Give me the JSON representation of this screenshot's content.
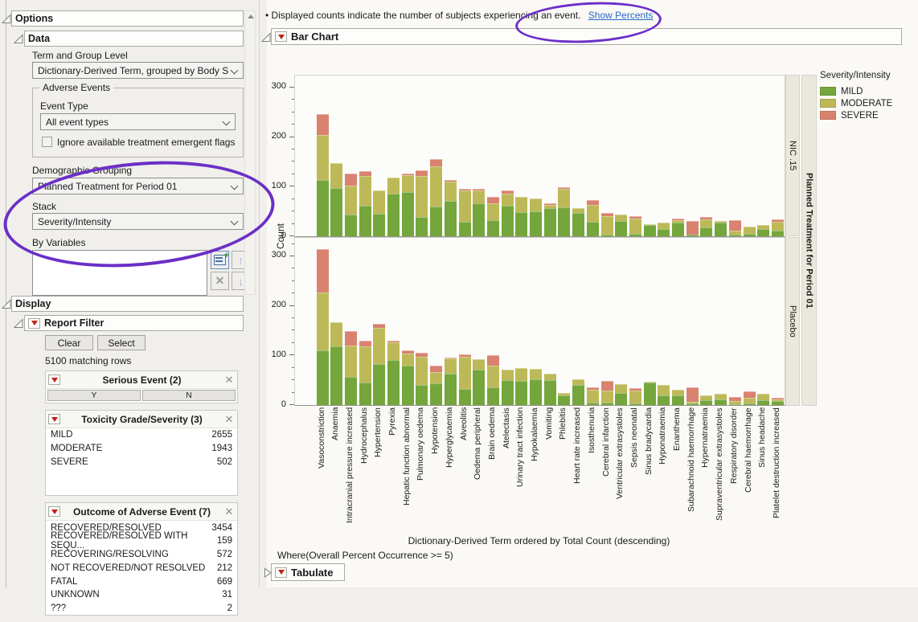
{
  "sidebar": {
    "options_label": "Options",
    "data_label": "Data",
    "term_group_label": "Term and Group Level",
    "term_group_value": "Dictionary-Derived Term, grouped by Body S",
    "adverse_events": {
      "legend": "Adverse Events",
      "event_type_label": "Event Type",
      "event_type_value": "All event types",
      "checkbox_label": "Ignore available treatment emergent flags"
    },
    "demographic_label": "Demographic Grouping",
    "demographic_value": "Planned Treatment for Period 01",
    "stack_label": "Stack",
    "stack_value": "Severity/Intensity",
    "by_variables_label": "By Variables",
    "display_label": "Display",
    "report_filter_label": "Report Filter",
    "clear_label": "Clear",
    "select_label": "Select",
    "matching_rows": "5100 matching rows",
    "filters": [
      {
        "title": "Serious Event (2)",
        "type": "buttons",
        "options": [
          "Y",
          "N"
        ]
      },
      {
        "title": "Toxicity Grade/Severity (3)",
        "type": "list",
        "pad_rows": 2,
        "rows": [
          [
            "MILD",
            "2655"
          ],
          [
            "MODERATE",
            "1943"
          ],
          [
            "SEVERE",
            "502"
          ]
        ]
      },
      {
        "title": "Outcome of Adverse Event (7)",
        "type": "list",
        "pad_rows": 0,
        "rows": [
          [
            "RECOVERED/RESOLVED",
            "3454"
          ],
          [
            "RECOVERED/RESOLVED WITH SEQU...",
            "159"
          ],
          [
            "RECOVERING/RESOLVING",
            "572"
          ],
          [
            "NOT RECOVERED/NOT RESOLVED",
            "212"
          ],
          [
            "FATAL",
            "669"
          ],
          [
            "UNKNOWN",
            "31"
          ],
          [
            "???",
            "2"
          ]
        ]
      }
    ]
  },
  "note": {
    "bullet": "•",
    "text": "Displayed counts indicate the number of subjects experiencing an event.",
    "link": "Show Percents"
  },
  "report": {
    "bar_chart_title": "Bar Chart",
    "ylabel": "Count",
    "xaxis_title": "Dictionary-Derived Term ordered by Total Count (descending)",
    "where_text": "Where(Overall Percent Occurrence >= 5)",
    "tabulate_label": "Tabulate",
    "group_strip_label": "Planned Treatment for Period 01"
  },
  "legend": {
    "title": "Severity/Intensity",
    "entries": [
      {
        "label": "MILD",
        "color": "#74A63C"
      },
      {
        "label": "MODERATE",
        "color": "#BDB958"
      },
      {
        "label": "SEVERE",
        "color": "#D98270"
      }
    ]
  },
  "chart_data": {
    "type": "bar",
    "stacked": true,
    "title": "Bar Chart",
    "xlabel": "Dictionary-Derived Term ordered by Total Count (descending)",
    "ylabel": "Count",
    "ylim": [
      0,
      330
    ],
    "yticks": [
      0,
      100,
      200,
      300
    ],
    "legend_title": "Severity/Intensity",
    "panel_variable": "Planned Treatment for Period 01",
    "categories": [
      "Vasoconstriction",
      "Anaemia",
      "Intracranial pressure increased",
      "Hydrocephalus",
      "Hypertension",
      "Pyrexia",
      "Hepatic function abnormal",
      "Pulmonary oedema",
      "Hypotension",
      "Hyperglycaemia",
      "Alveolitis",
      "Oedema peripheral",
      "Brain oedema",
      "Atelectasis",
      "Urinary tract infection",
      "Hypokalaemia",
      "Vomiting",
      "Phlebitis",
      "Heart rate increased",
      "Isosthenuria",
      "Cerebral infarction",
      "Ventricular extrasystoles",
      "Sepsis neonatal",
      "Sinus bradycardia",
      "Hyponatraemia",
      "Enanthema",
      "Subarachnoid haemorrhage",
      "Hypernatraemia",
      "Supraventricular extrasystoles",
      "Respiratory disorder",
      "Cerebral haemorrhage",
      "Sinus headache",
      "Platelet destruction increased"
    ],
    "panels": [
      {
        "name": "NIC .15",
        "series": [
          {
            "name": "MILD",
            "values": [
              113,
              97,
              44,
              61,
              46,
              86,
              90,
              39,
              60,
              71,
              29,
              67,
              32,
              61,
              48,
              50,
              57,
              59,
              47,
              30,
              4,
              31,
              5,
              22,
              14,
              28,
              3,
              18,
              28,
              4,
              5,
              15,
              11
            ]
          },
          {
            "name": "MODERATE",
            "values": [
              91,
              50,
              58,
              61,
              46,
              32,
              33,
              83,
              81,
              40,
              63,
              26,
              35,
              25,
              32,
              26,
              7,
              36,
              10,
              33,
              36,
              13,
              30,
              2,
              13,
              4,
              0,
              16,
              3,
              7,
              15,
              8,
              18
            ]
          },
          {
            "name": "SEVERE",
            "values": [
              43,
              0,
              25,
              9,
              0,
              0,
              4,
              11,
              15,
              3,
              4,
              2,
              13,
              7,
              0,
              0,
              2,
              4,
              0,
              10,
              7,
              0,
              5,
              0,
              0,
              3,
              28,
              5,
              0,
              21,
              0,
              0,
              5
            ]
          }
        ]
      },
      {
        "name": "Placebo",
        "series": [
          {
            "name": "MILD",
            "values": [
              110,
              119,
              56,
              46,
              82,
              91,
              79,
              41,
              43,
              63,
              33,
              72,
              35,
              50,
              48,
              52,
              50,
              20,
              41,
              5,
              5,
              25,
              4,
              45,
              20,
              19,
              3,
              9,
              11,
              2,
              4,
              9,
              8
            ]
          },
          {
            "name": "MODERATE",
            "values": [
              117,
              48,
              64,
              72,
              74,
              35,
              25,
              57,
              23,
              31,
              65,
              20,
              45,
              22,
              26,
              21,
              14,
              4,
              11,
              26,
              25,
              18,
              26,
              2,
              20,
              12,
              4,
              10,
              11,
              6,
              11,
              14,
              4
            ]
          },
          {
            "name": "SEVERE",
            "values": [
              87,
              0,
              30,
              11,
              8,
              4,
              7,
              7,
              14,
              2,
              5,
              0,
              21,
              0,
              0,
              0,
              0,
              0,
              0,
              5,
              18,
              0,
              4,
              0,
              0,
              0,
              28,
              0,
              0,
              9,
              13,
              0,
              3
            ]
          }
        ]
      }
    ]
  }
}
